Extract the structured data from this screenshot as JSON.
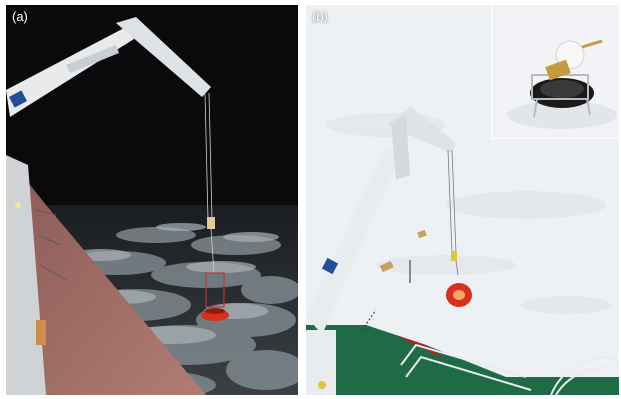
{
  "panels": [
    {
      "id": "a",
      "label": "(a)",
      "scene": "night"
    },
    {
      "id": "b",
      "label": "(b)",
      "scene": "day"
    }
  ],
  "colors": {
    "night_sky": "#0a0a0c",
    "ice_floe": "#9aa3a8",
    "ship_deck": "#a9716a",
    "snow": "#f1f3f6",
    "buoy_red": "#d8301c",
    "ship_green": "#1f6b45",
    "crane_white": "#e9ecef",
    "crane_logo_blue": "#1f4f9a"
  },
  "icons": [
    "crane-icon",
    "buoy-icon",
    "ship-railing-icon"
  ]
}
